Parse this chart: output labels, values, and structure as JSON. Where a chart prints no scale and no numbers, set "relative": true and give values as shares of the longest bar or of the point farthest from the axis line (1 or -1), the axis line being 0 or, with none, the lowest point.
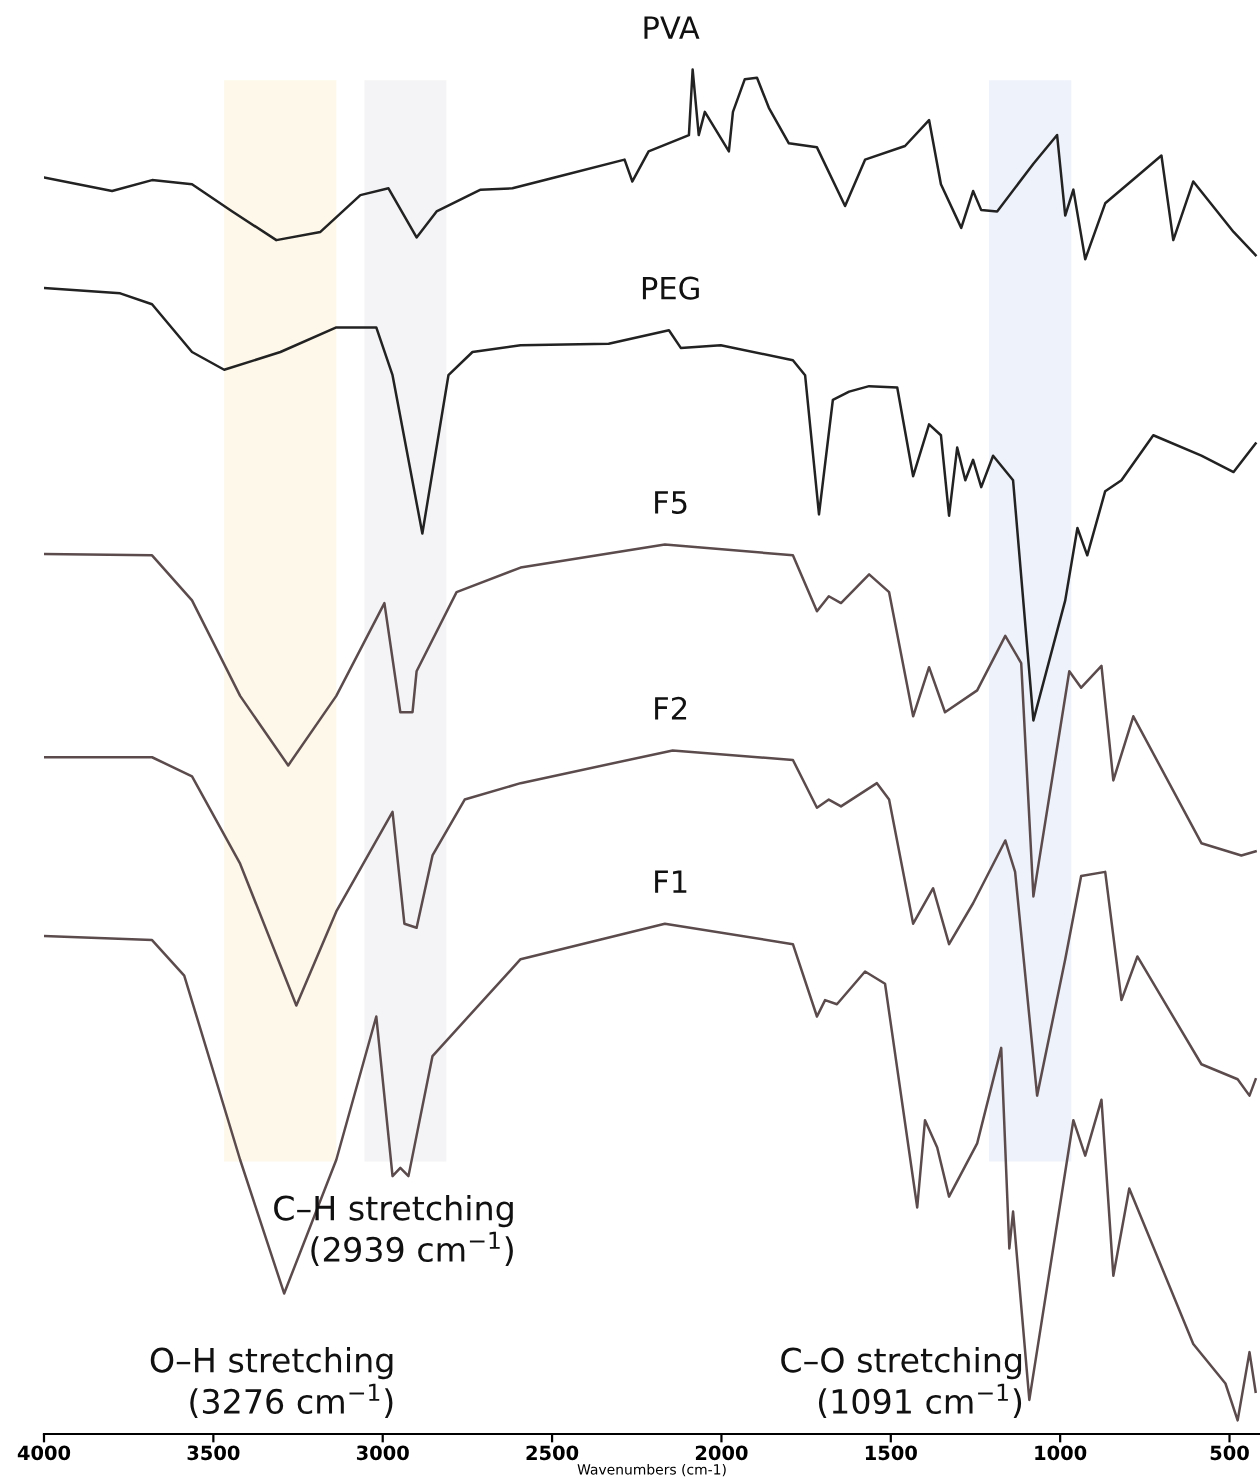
{
  "chart_data": {
    "type": "line",
    "relative": true,
    "xlabel": "Wavenumbers (cm-1)",
    "xlim": [
      4000,
      410
    ],
    "xticks": [
      4000,
      3500,
      3000,
      2500,
      2000,
      1500,
      1000,
      500
    ],
    "grid": false,
    "legend": false,
    "marker": "none",
    "line_style": "solid",
    "bands": [
      {
        "axis": "x",
        "from": 3468,
        "to": 3137,
        "color": "#fdf8e9"
      },
      {
        "axis": "x",
        "from": 3054,
        "to": 2812,
        "color": "#f4f4f6"
      },
      {
        "axis": "x",
        "from": 1210,
        "to": 967,
        "color": "#eef2fa"
      }
    ],
    "annotations": [
      "C–H stretching\n(2939 cm$^{−1}$)",
      "O–H stretching\n(3276 cm$^{−1}$)",
      "C–O stretching\n(1091 cm$^{−1}$)"
    ],
    "series": [
      {
        "name": "PVA",
        "color": "#222222",
        "x": [
          4000,
          3799,
          3681,
          3563,
          3444,
          3314,
          3184,
          3066,
          2983,
          2900,
          2841,
          2711,
          2617,
          2475,
          2286,
          2263,
          2215,
          2096,
          2085,
          2067,
          2049,
          1978,
          1966,
          1931,
          1895,
          1860,
          1801,
          1718,
          1635,
          1576,
          1458,
          1387,
          1352,
          1292,
          1257,
          1233,
          1186,
          1079,
          1009,
          985,
          961,
          926,
          867,
          772,
          701,
          666,
          607,
          488,
          423
        ],
        "values": [
          0.921,
          0.911,
          0.919,
          0.916,
          0.896,
          0.875,
          0.881,
          0.908,
          0.913,
          0.877,
          0.896,
          0.912,
          0.913,
          0.922,
          0.934,
          0.918,
          0.94,
          0.952,
          1.0,
          0.952,
          0.969,
          0.94,
          0.969,
          0.993,
          0.994,
          0.972,
          0.946,
          0.943,
          0.9,
          0.934,
          0.944,
          0.963,
          0.916,
          0.884,
          0.911,
          0.897,
          0.896,
          0.931,
          0.952,
          0.893,
          0.912,
          0.861,
          0.902,
          0.922,
          0.937,
          0.875,
          0.918,
          0.881,
          0.864
        ]
      },
      {
        "name": "PEG",
        "color": "#222222",
        "x": [
          4000,
          3775,
          3681,
          3563,
          3468,
          3302,
          3137,
          3019,
          2971,
          2883,
          2806,
          2735,
          2593,
          2333,
          2155,
          2120,
          2002,
          1789,
          1753,
          1712,
          1671,
          1623,
          1564,
          1481,
          1434,
          1387,
          1352,
          1328,
          1304,
          1280,
          1257,
          1233,
          1198,
          1139,
          1079,
          985,
          949,
          920,
          867,
          819,
          725,
          583,
          488,
          423
        ],
        "values": [
          0.84,
          0.836,
          0.828,
          0.793,
          0.78,
          0.793,
          0.811,
          0.811,
          0.776,
          0.66,
          0.776,
          0.793,
          0.798,
          0.799,
          0.809,
          0.796,
          0.798,
          0.787,
          0.776,
          0.674,
          0.758,
          0.764,
          0.768,
          0.767,
          0.702,
          0.74,
          0.732,
          0.673,
          0.723,
          0.699,
          0.714,
          0.694,
          0.717,
          0.699,
          0.523,
          0.611,
          0.664,
          0.644,
          0.691,
          0.699,
          0.732,
          0.717,
          0.705,
          0.726
        ]
      },
      {
        "name": "F5",
        "color": "#5b4b4d",
        "x": [
          4000,
          3681,
          3563,
          3421,
          3279,
          3137,
          2995,
          2948,
          2912,
          2900,
          2782,
          2593,
          2167,
          1789,
          1718,
          1683,
          1647,
          1564,
          1505,
          1434,
          1387,
          1340,
          1245,
          1162,
          1115,
          1079,
          973,
          938,
          878,
          843,
          784,
          583,
          465,
          423
        ],
        "values": [
          0.645,
          0.644,
          0.611,
          0.541,
          0.49,
          0.541,
          0.609,
          0.529,
          0.529,
          0.559,
          0.617,
          0.635,
          0.652,
          0.644,
          0.603,
          0.614,
          0.609,
          0.63,
          0.617,
          0.526,
          0.562,
          0.529,
          0.545,
          0.585,
          0.565,
          0.394,
          0.559,
          0.547,
          0.563,
          0.479,
          0.526,
          0.433,
          0.424,
          0.427
        ]
      },
      {
        "name": "F2",
        "color": "#5b4b4d",
        "x": [
          4000,
          3681,
          3563,
          3421,
          3255,
          3137,
          2971,
          2936,
          2900,
          2853,
          2758,
          2593,
          2144,
          1789,
          1718,
          1683,
          1647,
          1541,
          1505,
          1434,
          1375,
          1328,
          1257,
          1162,
          1133,
          1068,
          985,
          938,
          867,
          819,
          772,
          583,
          476,
          441,
          423
        ],
        "values": [
          0.496,
          0.496,
          0.482,
          0.418,
          0.314,
          0.383,
          0.456,
          0.374,
          0.371,
          0.424,
          0.465,
          0.477,
          0.501,
          0.494,
          0.459,
          0.465,
          0.46,
          0.477,
          0.465,
          0.374,
          0.4,
          0.359,
          0.389,
          0.435,
          0.412,
          0.248,
          0.348,
          0.409,
          0.412,
          0.318,
          0.35,
          0.271,
          0.26,
          0.248,
          0.26
        ]
      },
      {
        "name": "F1",
        "color": "#5b4b4d",
        "x": [
          4000,
          3681,
          3586,
          3421,
          3291,
          3137,
          3019,
          2971,
          2948,
          2924,
          2853,
          2593,
          2167,
          1789,
          1718,
          1694,
          1659,
          1576,
          1517,
          1422,
          1399,
          1363,
          1328,
          1245,
          1174,
          1150,
          1139,
          1091,
          961,
          926,
          878,
          843,
          796,
          607,
          512,
          476,
          441,
          423
        ],
        "values": [
          0.365,
          0.362,
          0.336,
          0.201,
          0.103,
          0.201,
          0.306,
          0.189,
          0.195,
          0.189,
          0.277,
          0.348,
          0.374,
          0.359,
          0.306,
          0.318,
          0.315,
          0.339,
          0.33,
          0.166,
          0.23,
          0.21,
          0.174,
          0.213,
          0.283,
          0.136,
          0.163,
          0.025,
          0.23,
          0.204,
          0.245,
          0.116,
          0.18,
          0.066,
          0.037,
          0.01,
          0.06,
          0.031
        ]
      }
    ]
  }
}
